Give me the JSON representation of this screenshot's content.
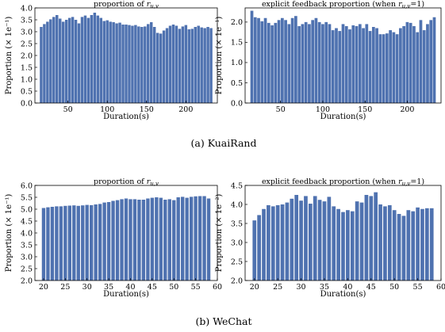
{
  "captions": [
    "(a)  KuaiRand",
    "(b)  WeChat"
  ],
  "chart_data": [
    {
      "type": "bar",
      "title": "proportion of r_{u,v}",
      "title_prefix": "proportion of ",
      "title_sub": "u,v",
      "xlabel": "Duration(s)",
      "ylabel": "Proportion (× 1e⁻¹)",
      "xlim": [
        8,
        240
      ],
      "ylim": [
        0.0,
        4.0
      ],
      "xticks": [
        50,
        100,
        150,
        200
      ],
      "yticks": [
        0.0,
        0.5,
        1.0,
        1.5,
        2.0,
        2.5,
        3.0,
        3.5,
        4.0
      ],
      "bar_width": 3.5,
      "x": [
        16,
        20,
        24,
        28,
        32,
        36,
        40,
        44,
        48,
        52,
        56,
        60,
        64,
        68,
        72,
        76,
        80,
        84,
        88,
        92,
        96,
        100,
        104,
        108,
        112,
        116,
        120,
        124,
        128,
        132,
        136,
        140,
        144,
        148,
        152,
        156,
        160,
        164,
        168,
        172,
        176,
        180,
        184,
        188,
        192,
        196,
        200,
        204,
        208,
        212,
        216,
        220,
        224,
        228,
        232
      ],
      "values": [
        3.2,
        3.32,
        3.42,
        3.52,
        3.62,
        3.7,
        3.55,
        3.42,
        3.5,
        3.58,
        3.62,
        3.5,
        3.35,
        3.62,
        3.68,
        3.58,
        3.7,
        3.8,
        3.68,
        3.58,
        3.45,
        3.48,
        3.42,
        3.4,
        3.35,
        3.38,
        3.3,
        3.3,
        3.28,
        3.25,
        3.28,
        3.22,
        3.2,
        3.22,
        3.32,
        3.4,
        3.2,
        2.95,
        2.92,
        3.05,
        3.15,
        3.25,
        3.3,
        3.25,
        3.12,
        3.22,
        3.28,
        3.1,
        3.12,
        3.2,
        3.25,
        3.18,
        3.15,
        3.2,
        3.15
      ],
      "grid": false
    },
    {
      "type": "bar",
      "title": "explicit feedback proportion (when r_{u,v}=1)",
      "title_prefix": "explicit feedback proportion (when ",
      "title_sub": "u,v",
      "title_suffix": "=1)",
      "xlabel": "Duration(s)",
      "ylabel": "Proportion (× 1e⁻¹)",
      "xlim": [
        8,
        240
      ],
      "ylim": [
        0.0,
        2.35
      ],
      "xticks": [
        50,
        100,
        150,
        200
      ],
      "yticks": [
        0.0,
        0.5,
        1.0,
        1.5,
        2.0
      ],
      "bar_width": 3.5,
      "x": [
        16,
        20,
        24,
        28,
        32,
        36,
        40,
        44,
        48,
        52,
        56,
        60,
        64,
        68,
        72,
        76,
        80,
        84,
        88,
        92,
        96,
        100,
        104,
        108,
        112,
        116,
        120,
        124,
        128,
        132,
        136,
        140,
        144,
        148,
        152,
        156,
        160,
        164,
        168,
        172,
        176,
        180,
        184,
        188,
        192,
        196,
        200,
        204,
        208,
        212,
        216,
        220,
        224,
        228,
        232
      ],
      "values": [
        2.28,
        2.12,
        2.1,
        2.02,
        2.1,
        1.98,
        1.92,
        1.98,
        2.05,
        2.1,
        2.05,
        1.95,
        2.1,
        2.15,
        1.9,
        1.95,
        2.0,
        1.95,
        2.05,
        2.1,
        2.0,
        1.95,
        2.0,
        1.95,
        1.8,
        1.85,
        1.78,
        1.95,
        1.9,
        1.82,
        1.92,
        1.9,
        1.95,
        1.85,
        1.95,
        1.78,
        1.88,
        1.85,
        1.7,
        1.7,
        1.72,
        1.8,
        1.75,
        1.7,
        1.85,
        1.9,
        2.0,
        1.98,
        1.9,
        1.75,
        2.05,
        1.8,
        1.95,
        2.05,
        2.12
      ],
      "grid": false
    },
    {
      "type": "bar",
      "title": "proportion of r_{u,v}",
      "title_prefix": "proportion of ",
      "title_sub": "u,v",
      "xlabel": "Duration(s)",
      "ylabel": "Proportion (× 1e⁻¹)",
      "xlim": [
        18,
        60
      ],
      "ylim": [
        2.0,
        6.0
      ],
      "xticks": [
        20,
        25,
        30,
        35,
        40,
        45,
        50,
        55,
        60
      ],
      "yticks": [
        2.0,
        2.5,
        3.0,
        3.5,
        4.0,
        4.5,
        5.0,
        5.5,
        6.0
      ],
      "bar_width": 0.8,
      "x": [
        20,
        21,
        22,
        23,
        24,
        25,
        26,
        27,
        28,
        29,
        30,
        31,
        32,
        33,
        34,
        35,
        36,
        37,
        38,
        39,
        40,
        41,
        42,
        43,
        44,
        45,
        46,
        47,
        48,
        49,
        50,
        51,
        52,
        53,
        54,
        55,
        56,
        57,
        58
      ],
      "values": [
        5.05,
        5.08,
        5.1,
        5.12,
        5.12,
        5.14,
        5.15,
        5.16,
        5.14,
        5.16,
        5.18,
        5.17,
        5.2,
        5.22,
        5.28,
        5.3,
        5.35,
        5.38,
        5.42,
        5.45,
        5.42,
        5.42,
        5.4,
        5.4,
        5.45,
        5.48,
        5.5,
        5.48,
        5.4,
        5.42,
        5.38,
        5.5,
        5.52,
        5.48,
        5.52,
        5.54,
        5.55,
        5.55,
        5.45
      ],
      "grid": false
    },
    {
      "type": "bar",
      "title": "explicit feedback proportion (when r_{u,v}=1)",
      "title_prefix": "explicit feedback proportion (when ",
      "title_sub": "u,v",
      "title_suffix": "=1)",
      "xlabel": "Duration(s)",
      "ylabel": "Proportion (× 1e⁻²)",
      "xlim": [
        18,
        60
      ],
      "ylim": [
        2.0,
        4.5
      ],
      "xticks": [
        20,
        25,
        30,
        35,
        40,
        45,
        50,
        55,
        60
      ],
      "yticks": [
        2.0,
        2.5,
        3.0,
        3.5,
        4.0,
        4.5
      ],
      "bar_width": 0.8,
      "x": [
        20,
        21,
        22,
        23,
        24,
        25,
        26,
        27,
        28,
        29,
        30,
        31,
        32,
        33,
        34,
        35,
        36,
        37,
        38,
        39,
        40,
        41,
        42,
        43,
        44,
        45,
        46,
        47,
        48,
        49,
        50,
        51,
        52,
        53,
        54,
        55,
        56,
        57,
        58
      ],
      "values": [
        3.58,
        3.72,
        3.88,
        3.98,
        3.95,
        3.98,
        4.0,
        4.05,
        4.15,
        4.25,
        4.1,
        4.22,
        4.02,
        4.22,
        4.12,
        4.08,
        4.2,
        3.95,
        3.88,
        3.8,
        3.85,
        3.82,
        4.08,
        4.05,
        4.25,
        4.22,
        4.32,
        4.0,
        3.95,
        3.98,
        3.85,
        3.75,
        3.7,
        3.85,
        3.82,
        3.92,
        3.88,
        3.9,
        3.9
      ],
      "grid": false
    }
  ]
}
